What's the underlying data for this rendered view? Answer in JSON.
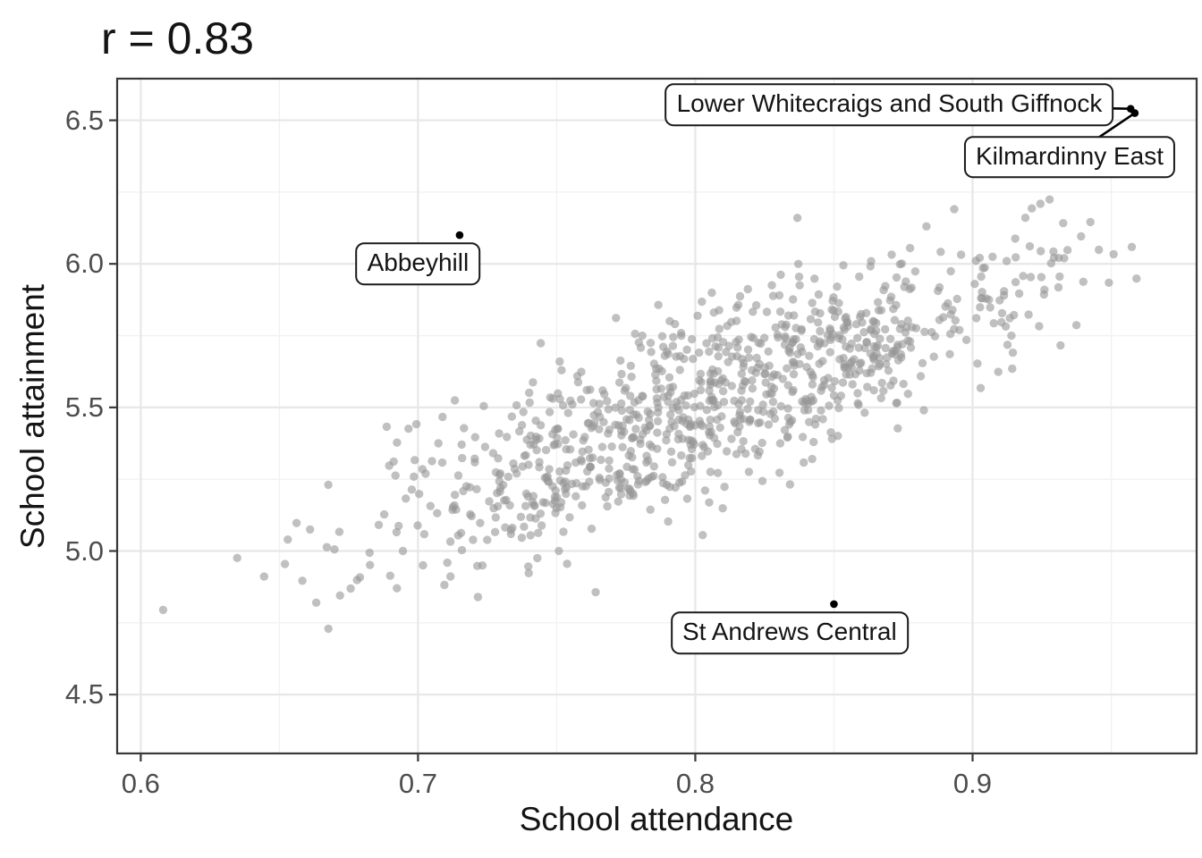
{
  "title": "r = 0.83",
  "axes": {
    "x": {
      "label": "School attendance",
      "ticks": [
        0.6,
        0.7,
        0.8,
        0.9
      ],
      "tick_labels": [
        "0.6",
        "0.7",
        "0.8",
        "0.9"
      ],
      "minor_step": 0.05
    },
    "y": {
      "label": "School attainment",
      "ticks": [
        4.5,
        5.0,
        5.5,
        6.0,
        6.5
      ],
      "tick_labels": [
        "4.5",
        "5.0",
        "5.5",
        "6.0",
        "6.5"
      ],
      "minor_step": 0.25
    }
  },
  "chart_data": {
    "type": "scatter",
    "title": "r = 0.83",
    "xlabel": "School attendance",
    "ylabel": "School attainment",
    "xlim": [
      0.5915,
      0.9808
    ],
    "ylim": [
      4.295,
      6.645
    ],
    "x_ticks": [
      0.6,
      0.7,
      0.8,
      0.9
    ],
    "y_ticks": [
      4.5,
      5.0,
      5.5,
      6.0,
      6.5
    ],
    "grid": "major+minor",
    "legend": "none",
    "correlation": 0.83,
    "point_color": "#c3c3c3",
    "labeled_point_color": "#000000",
    "labeled_points": [
      {
        "label": "Lower Whitecraigs and South Giffnock",
        "x": 0.957,
        "y": 6.54,
        "label_x": 0.87,
        "label_y": 6.555,
        "leader": true
      },
      {
        "label": "Kilmardinny East",
        "x": 0.9585,
        "y": 6.525,
        "label_x": 0.935,
        "label_y": 6.372,
        "leader": true
      },
      {
        "label": "Abbeyhill",
        "x": 0.715,
        "y": 6.1,
        "label_x": 0.7,
        "label_y": 6.0,
        "leader": false
      },
      {
        "label": "St Andrews Central",
        "x": 0.85,
        "y": 4.815,
        "label_x": 0.834,
        "label_y": 4.714,
        "leader": false
      }
    ],
    "cloud_model": {
      "note": "approx. 960 unlabeled grey points forming a positively correlated cloud (r = 0.83); individual positions estimated from the pixel cloud and regenerated deterministically",
      "n": 960,
      "seed": 42,
      "x_mean": 0.806,
      "x_sd": 0.063,
      "slope": 3.7,
      "y_at_x_mean": 5.52,
      "resid_sd": 0.155,
      "x_clip": [
        0.604,
        0.963
      ],
      "y_clip": [
        4.4,
        6.6
      ]
    }
  },
  "colors": {
    "background": "#ffffff",
    "panel_border": "#383838",
    "tick_mark": "#383838",
    "grid_major": "#e7e7e7",
    "grid_minor": "#f2f2f2",
    "tick_text": "#4d4d4d",
    "title_text": "#141414",
    "point_grey": "rgba(150,150,150,0.6)",
    "annotation_border": "#1a1a1a",
    "annotation_fill": "#ffffff"
  }
}
